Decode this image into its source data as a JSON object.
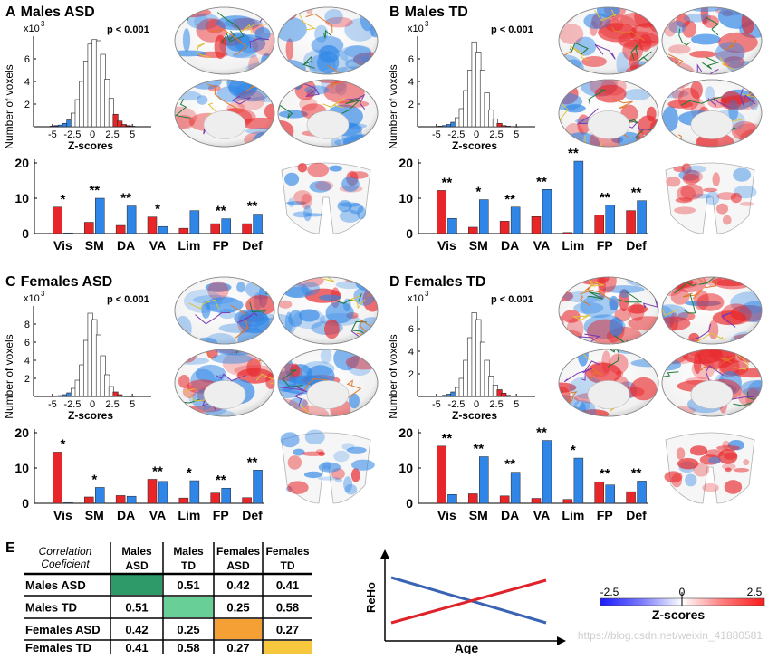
{
  "colors": {
    "red": "#e8262a",
    "blue": "#2f86e6",
    "dark_red": "#8b0000",
    "dark_blue": "#0a2f7a",
    "asd_male": "#2e9a6a",
    "td_male": "#68cf97",
    "asd_female": "#f5a035",
    "td_female": "#f7c73e",
    "line_blue": "#3b63b5",
    "line_red": "#e0222a"
  },
  "common": {
    "hist_ylabel": "Number of voxels",
    "hist_xlabel": "Z-scores",
    "exponent_base": "x10",
    "exponent_power": "3",
    "pvalue": "p < 0.001",
    "hist_xticks": [
      "-5",
      "-2.5",
      "0",
      "2.5",
      "5"
    ]
  },
  "panels": [
    {
      "letter": "A",
      "title": "Males ASD",
      "hist": {
        "yticks": [
          "2",
          "4",
          "6"
        ],
        "max": 8,
        "heights": [
          0.05,
          0.1,
          0.15,
          0.3,
          0.6,
          1.2,
          2.4,
          4.0,
          5.8,
          7.3,
          7.7,
          7.6,
          6.4,
          4.2,
          2.5,
          1.1,
          0.5,
          0.2,
          0.1,
          0.05
        ]
      },
      "bars": {
        "yticks": [
          "0",
          "10",
          "20"
        ],
        "max": 20,
        "categories": [
          "Vis",
          "SM",
          "DA",
          "VA",
          "Lim",
          "FP",
          "Def"
        ],
        "red": [
          7.5,
          3.2,
          2.3,
          4.7,
          1.5,
          2.8,
          2.8
        ],
        "blue": [
          0.2,
          10,
          7.8,
          2.0,
          6.5,
          4.2,
          5.5
        ],
        "stars": [
          "*",
          "**",
          "**",
          "*",
          "",
          "**",
          "**"
        ]
      }
    },
    {
      "letter": "B",
      "title": "Males TD",
      "hist": {
        "yticks": [
          "2",
          "4",
          "6"
        ],
        "max": 8,
        "heights": [
          0.02,
          0.05,
          0.1,
          0.2,
          0.4,
          0.8,
          1.6,
          3.2,
          5.0,
          7.5,
          6.6,
          5.0,
          3.0,
          1.5,
          0.7,
          0.3,
          0.1,
          0.05,
          0.02,
          0.01
        ]
      },
      "bars": {
        "yticks": [
          "0",
          "10",
          "20"
        ],
        "max": 20,
        "categories": [
          "Vis",
          "SM",
          "DA",
          "VA",
          "Lim",
          "FP",
          "Def"
        ],
        "red": [
          12.2,
          1.8,
          3.5,
          4.8,
          0.3,
          5.2,
          6.5
        ],
        "blue": [
          4.3,
          9.6,
          7.5,
          12.5,
          20.5,
          8.0,
          9.3
        ],
        "stars": [
          "**",
          "*",
          "**",
          "**",
          "**",
          "**",
          "**"
        ]
      }
    },
    {
      "letter": "C",
      "title": "Females ASD",
      "hist": {
        "yticks": [
          "2",
          "4",
          "6",
          "8"
        ],
        "max": 10,
        "heights": [
          0.02,
          0.05,
          0.1,
          0.2,
          0.4,
          0.9,
          1.8,
          3.5,
          6.2,
          9.2,
          8.5,
          6.8,
          4.5,
          2.4,
          1.1,
          0.5,
          0.2,
          0.05,
          0.02,
          0.01
        ]
      },
      "bars": {
        "yticks": [
          "0",
          "10",
          "20"
        ],
        "max": 20,
        "categories": [
          "Vis",
          "SM",
          "DA",
          "VA",
          "Lim",
          "FP",
          "Def"
        ],
        "red": [
          14.5,
          1.8,
          2.2,
          6.8,
          1.5,
          2.9,
          1.6
        ],
        "blue": [
          0.2,
          4.5,
          2.0,
          6.2,
          6.4,
          4.3,
          9.4
        ],
        "stars": [
          "*",
          "*",
          "",
          "**",
          "*",
          "**",
          "**"
        ]
      }
    },
    {
      "letter": "D",
      "title": "Females TD",
      "hist": {
        "yticks": [
          "2",
          "4",
          "6"
        ],
        "max": 8,
        "heights": [
          0.02,
          0.05,
          0.1,
          0.2,
          0.4,
          0.8,
          1.6,
          3.2,
          5.2,
          7.4,
          6.8,
          4.8,
          3.2,
          1.8,
          1.0,
          0.6,
          0.3,
          0.1,
          0.05,
          0.02
        ]
      },
      "bars": {
        "yticks": [
          "0",
          "10",
          "20"
        ],
        "max": 20,
        "categories": [
          "Vis",
          "SM",
          "DA",
          "VA",
          "Lim",
          "FP",
          "Def"
        ],
        "red": [
          16.2,
          2.7,
          2.1,
          1.4,
          1.1,
          6.1,
          3.3
        ],
        "blue": [
          2.5,
          13.2,
          8.8,
          17.8,
          12.8,
          5.2,
          6.3
        ],
        "stars": [
          "**",
          "**",
          "**",
          "**",
          "*",
          "**",
          "**"
        ]
      }
    }
  ],
  "table": {
    "letter": "E",
    "corner_line1": "Correlation",
    "corner_line2": "Coeficient",
    "col_headers": [
      [
        "Males",
        "ASD"
      ],
      [
        "Males",
        "TD"
      ],
      [
        "Females",
        "ASD"
      ],
      [
        "Females",
        "TD"
      ]
    ],
    "rows": [
      {
        "label": "Males ASD",
        "cells": [
          "",
          "0.51",
          "0.42",
          "0.41"
        ]
      },
      {
        "label": "Males TD",
        "cells": [
          "0.51",
          "",
          "0.25",
          "0.58"
        ]
      },
      {
        "label": "Females ASD",
        "cells": [
          "0.42",
          "0.25",
          "",
          "0.27"
        ]
      },
      {
        "label": "Females TD",
        "cells": [
          "0.41",
          "0.58",
          "0.27",
          ""
        ]
      }
    ]
  },
  "schematic": {
    "ylabel": "ReHo",
    "xlabel": "Age"
  },
  "colorbar": {
    "min_label": "-2.5",
    "mid_label": "0",
    "max_label": "2.5",
    "title": "Z-scores"
  },
  "watermark": "https://blog.csdn.net/weixin_41880581"
}
